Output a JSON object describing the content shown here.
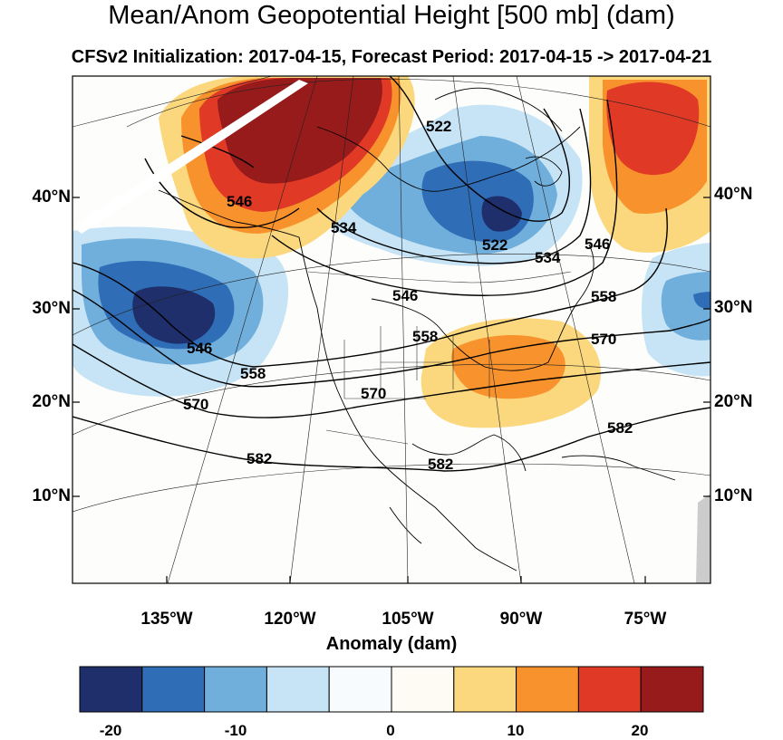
{
  "title": "Mean/Anom Geopotential Height [500 mb] (dam)",
  "subtitle": "CFSv2 Initialization: 2017-04-15, Forecast Period: 2017-04-15 -> 2017-04-21",
  "lat_ticks": [
    "40°N",
    "30°N",
    "20°N",
    "10°N"
  ],
  "lon_ticks": [
    "135°W",
    "120°W",
    "105°W",
    "90°W",
    "75°W"
  ],
  "contour_labels": [
    "522",
    "534",
    "546",
    "558",
    "570",
    "582"
  ],
  "colorbar": {
    "title": "Anomaly (dam)",
    "ticks": [
      "-20",
      "-10",
      "0",
      "10",
      "20"
    ],
    "colors": [
      "#1f2f6b",
      "#2f6db6",
      "#70aedc",
      "#c6e4f5",
      "#f7fbfd",
      "#fdfbf4",
      "#fbd87e",
      "#f8922c",
      "#e03a26",
      "#971b1b"
    ]
  },
  "colors": {
    "land_mask": "#cccccc"
  }
}
